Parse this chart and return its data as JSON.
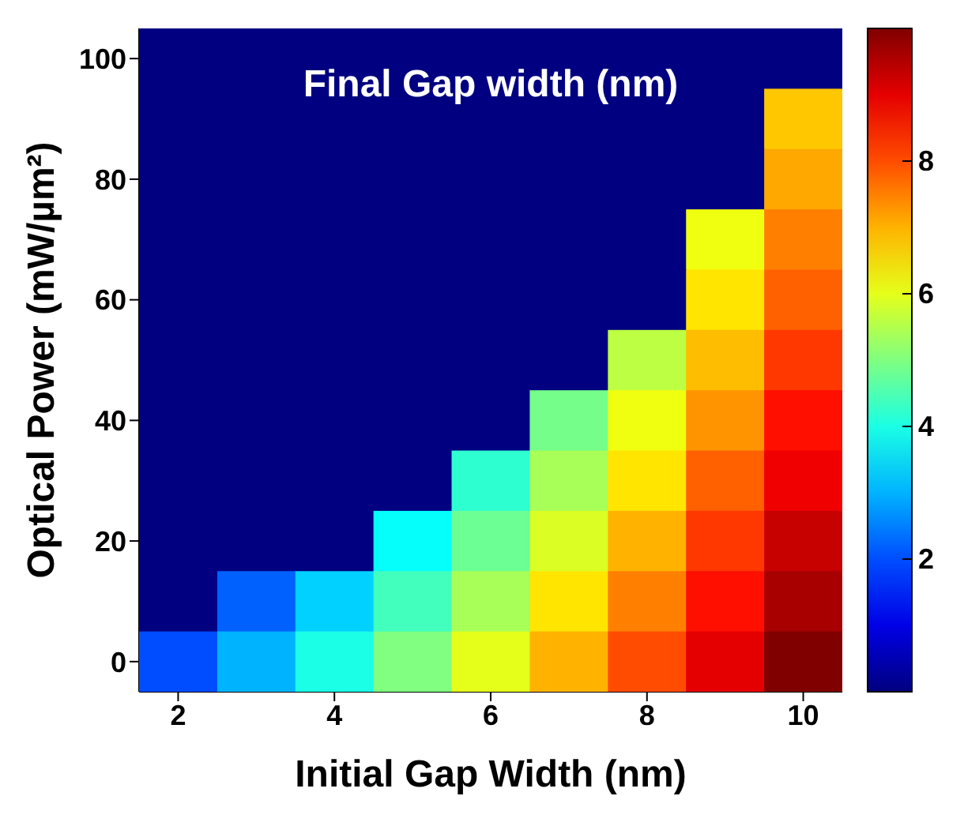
{
  "chart_data": {
    "type": "heatmap",
    "title": "Final Gap width (nm)",
    "xlabel": "Initial Gap Width (nm)",
    "ylabel": "Optical Power (mW/µm²)",
    "categories": [
      "2",
      null,
      "4",
      null,
      "6",
      null,
      "8",
      null,
      "10"
    ],
    "y_categories": [
      "100",
      null,
      "80",
      null,
      "60",
      null,
      "40",
      null,
      "20",
      null,
      "0"
    ],
    "cells": [
      [
        0,
        0,
        0,
        0,
        0,
        0,
        0,
        0,
        0
      ],
      [
        0,
        0,
        0,
        0,
        0,
        0,
        0,
        0,
        6.8
      ],
      [
        0,
        0,
        0,
        0,
        0,
        0,
        0,
        0,
        7.1
      ],
      [
        0,
        0,
        0,
        0,
        0,
        0,
        0,
        6.1,
        7.5
      ],
      [
        0,
        0,
        0,
        0,
        0,
        0,
        0,
        6.5,
        7.8
      ],
      [
        0,
        0,
        0,
        0,
        0,
        0,
        5.6,
        6.9,
        8.2
      ],
      [
        0,
        0,
        0,
        0,
        0,
        4.9,
        6.1,
        7.3,
        8.6
      ],
      [
        0,
        0,
        0,
        0,
        4.2,
        5.4,
        6.5,
        7.8,
        8.9
      ],
      [
        0,
        0,
        0,
        3.8,
        4.8,
        5.9,
        7.0,
        8.2,
        9.3
      ],
      [
        0,
        2.2,
        3.3,
        4.4,
        5.4,
        6.5,
        7.5,
        8.6,
        9.6
      ],
      [
        2.0,
        3.0,
        4.0,
        5.0,
        6.0,
        7.0,
        8.0,
        9.0,
        10
      ]
    ],
    "clim": [
      0,
      10
    ],
    "cticks": [
      2,
      4,
      6,
      8
    ]
  }
}
